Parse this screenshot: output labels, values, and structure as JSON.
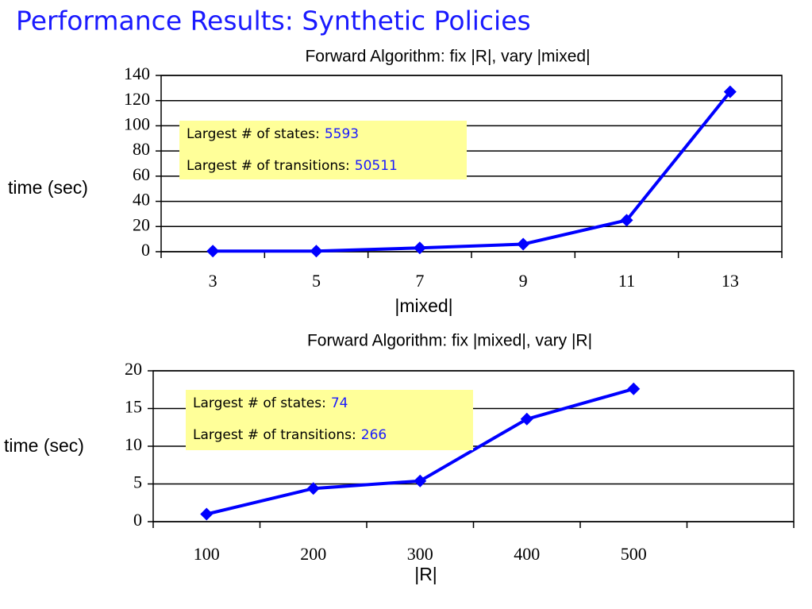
{
  "title": "Performance Results: Synthetic Policies",
  "chart_data": [
    {
      "type": "line",
      "title": "Forward Algorithm: fix |R|, vary |mixed|",
      "x_label": "|mixed|",
      "y_label": "time (sec)",
      "categories": [
        "3",
        "5",
        "7",
        "9",
        "11",
        "13"
      ],
      "series": [
        {
          "name": "time",
          "color": "#0000ff",
          "values": [
            0.5,
            0.5,
            3,
            6,
            25,
            127
          ]
        }
      ],
      "ylim": [
        0,
        140
      ],
      "yticks": [
        0,
        20,
        40,
        60,
        80,
        100,
        120,
        140
      ],
      "grid": true,
      "annotations": [
        {
          "label": "Largest # of states:",
          "value": 5593
        },
        {
          "label": "Largest # of transitions:",
          "value": 50511
        }
      ]
    },
    {
      "type": "line",
      "title": "Forward Algorithm: fix |mixed|, vary |R|",
      "x_label": "|R|",
      "y_label": "time (sec)",
      "categories": [
        "100",
        "200",
        "300",
        "400",
        "500",
        null
      ],
      "series": [
        {
          "name": "time",
          "color": "#0000ff",
          "values": [
            1,
            4.4,
            5.4,
            13.6,
            17.6,
            null
          ]
        }
      ],
      "ylim": [
        0,
        20
      ],
      "yticks": [
        0,
        5,
        10,
        15,
        20
      ],
      "grid": true,
      "annotations": [
        {
          "label": "Largest # of states:",
          "value": 74
        },
        {
          "label": "Largest # of transitions:",
          "value": 266
        }
      ]
    }
  ]
}
